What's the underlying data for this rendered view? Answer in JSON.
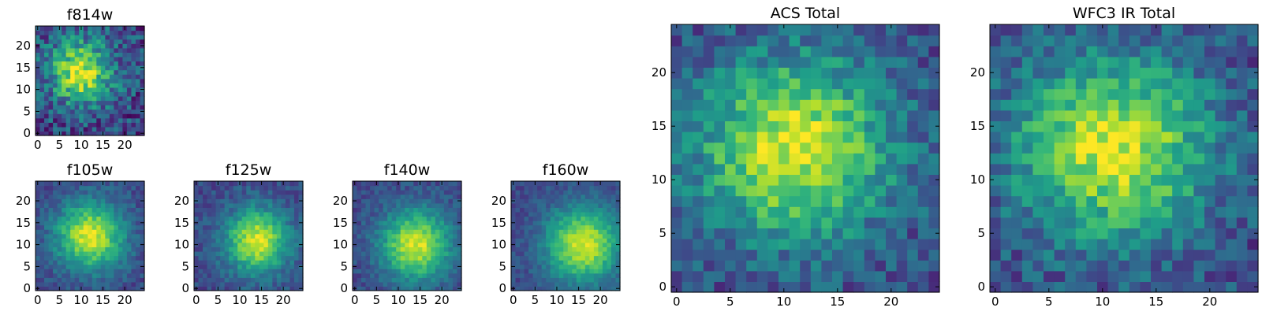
{
  "chart_data": [
    {
      "type": "heatmap",
      "title": "f814w",
      "xlim": [
        0,
        24
      ],
      "ylim": [
        0,
        24
      ],
      "x_ticks": [
        0,
        5,
        10,
        15,
        20
      ],
      "y_ticks": [
        0,
        5,
        10,
        15,
        20
      ],
      "colormap": "viridis",
      "peak_x": 10,
      "peak_y": 14,
      "sigma_x": 5.0,
      "sigma_y": 5.0,
      "noise": 0.22,
      "seed": 11
    },
    {
      "type": "heatmap",
      "title": "f105w",
      "xlim": [
        0,
        24
      ],
      "ylim": [
        0,
        24
      ],
      "x_ticks": [
        0,
        5,
        10,
        15,
        20
      ],
      "y_ticks": [
        0,
        5,
        10,
        15,
        20
      ],
      "colormap": "viridis",
      "peak_x": 12,
      "peak_y": 12,
      "sigma_x": 5.5,
      "sigma_y": 5.5,
      "noise": 0.1,
      "seed": 21
    },
    {
      "type": "heatmap",
      "title": "f125w",
      "xlim": [
        0,
        24
      ],
      "ylim": [
        0,
        24
      ],
      "x_ticks": [
        0,
        5,
        10,
        15,
        20
      ],
      "y_ticks": [
        0,
        5,
        10,
        15,
        20
      ],
      "colormap": "viridis",
      "peak_x": 14,
      "peak_y": 11,
      "sigma_x": 5.2,
      "sigma_y": 5.2,
      "noise": 0.1,
      "seed": 31
    },
    {
      "type": "heatmap",
      "title": "f140w",
      "xlim": [
        0,
        24
      ],
      "ylim": [
        0,
        24
      ],
      "x_ticks": [
        0,
        5,
        10,
        15,
        20
      ],
      "y_ticks": [
        0,
        5,
        10,
        15,
        20
      ],
      "colormap": "viridis",
      "peak_x": 14,
      "peak_y": 10,
      "sigma_x": 5.6,
      "sigma_y": 5.6,
      "noise": 0.09,
      "seed": 41
    },
    {
      "type": "heatmap",
      "title": "f160w",
      "xlim": [
        0,
        24
      ],
      "ylim": [
        0,
        24
      ],
      "x_ticks": [
        0,
        5,
        10,
        15,
        20
      ],
      "y_ticks": [
        0,
        5,
        10,
        15,
        20
      ],
      "colormap": "viridis",
      "peak_x": 16,
      "peak_y": 10,
      "sigma_x": 6.0,
      "sigma_y": 6.0,
      "noise": 0.08,
      "seed": 51
    },
    {
      "type": "heatmap",
      "title": "ACS Total",
      "xlim": [
        0,
        24
      ],
      "ylim": [
        0,
        24
      ],
      "x_ticks": [
        0,
        5,
        10,
        15,
        20
      ],
      "y_ticks": [
        0,
        5,
        10,
        15,
        20
      ],
      "colormap": "viridis",
      "peak_x": 11,
      "peak_y": 13,
      "sigma_x": 6.5,
      "sigma_y": 6.0,
      "noise": 0.16,
      "seed": 61
    },
    {
      "type": "heatmap",
      "title": "WFC3 IR Total",
      "xlim": [
        0,
        24
      ],
      "ylim": [
        0,
        24
      ],
      "x_ticks": [
        0,
        5,
        10,
        15,
        20
      ],
      "y_ticks": [
        0,
        5,
        10,
        15,
        20
      ],
      "colormap": "viridis",
      "peak_x": 11,
      "peak_y": 13,
      "sigma_x": 6.5,
      "sigma_y": 6.0,
      "noise": 0.16,
      "seed": 71
    }
  ]
}
